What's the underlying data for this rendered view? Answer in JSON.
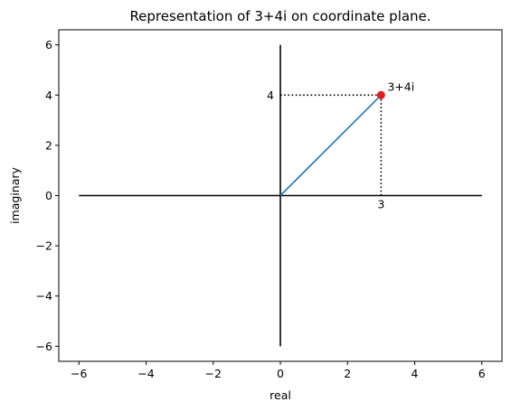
{
  "chart_data": {
    "type": "line",
    "title": "Representation of 3+4i on coordinate plane.",
    "xlabel": "real",
    "ylabel": "imaginary",
    "xlim": [
      -6.6,
      6.6
    ],
    "ylim": [
      -6.6,
      6.6
    ],
    "xticks": [
      -6,
      -4,
      -2,
      0,
      2,
      4,
      6
    ],
    "yticks": [
      -6,
      -4,
      -2,
      0,
      2,
      4,
      6
    ],
    "xtick_labels": [
      "−6",
      "−4",
      "−2",
      "0",
      "2",
      "4",
      "6"
    ],
    "ytick_labels": [
      "−6",
      "−4",
      "−2",
      "0",
      "2",
      "4",
      "6"
    ],
    "grid": false,
    "axis_lines": [
      {
        "x": [
          -6,
          6
        ],
        "y": [
          0,
          0
        ],
        "color": "#000000"
      },
      {
        "x": [
          0,
          0
        ],
        "y": [
          -6,
          6
        ],
        "color": "#000000"
      }
    ],
    "vector": {
      "x": [
        0,
        3
      ],
      "y": [
        0,
        4
      ],
      "color": "#1f77b4"
    },
    "guides": [
      {
        "x": [
          0,
          3
        ],
        "y": [
          4,
          4
        ],
        "style": "dotted",
        "color": "#000000"
      },
      {
        "x": [
          3,
          3
        ],
        "y": [
          0,
          4
        ],
        "style": "dotted",
        "color": "#000000"
      }
    ],
    "point": {
      "x": 3,
      "y": 4,
      "label": "3+4i",
      "color": "#e31a1c"
    },
    "annotations": [
      {
        "text": "4",
        "x": 0,
        "y": 4,
        "anchor": "left-of"
      },
      {
        "text": "3",
        "x": 3,
        "y": 0,
        "anchor": "below"
      }
    ]
  }
}
